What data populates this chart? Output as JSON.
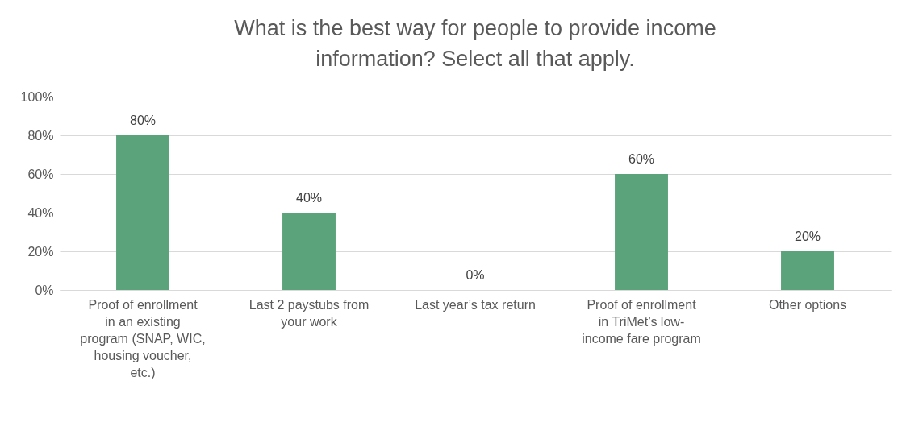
{
  "chart_data": {
    "type": "bar",
    "title": "What is the best way for people to provide income information? Select all that apply.",
    "categories": [
      "Proof of enrollment in an existing program (SNAP, WIC, housing voucher, etc.)",
      "Last 2 paystubs from your work",
      "Last year’s tax return",
      "Proof of enrollment in TriMet’s low-income fare program",
      "Other options"
    ],
    "values": [
      80,
      40,
      0,
      60,
      20
    ],
    "value_labels": [
      "80%",
      "40%",
      "0%",
      "60%",
      "20%"
    ],
    "color": "#5ba37a",
    "ylim": [
      0,
      100
    ],
    "yticks": [
      {
        "value": 0,
        "label": "0%"
      },
      {
        "value": 20,
        "label": "20%"
      },
      {
        "value": 40,
        "label": "40%"
      },
      {
        "value": 60,
        "label": "60%"
      },
      {
        "value": 80,
        "label": "80%"
      },
      {
        "value": 100,
        "label": "100%"
      }
    ],
    "grid": "y"
  }
}
